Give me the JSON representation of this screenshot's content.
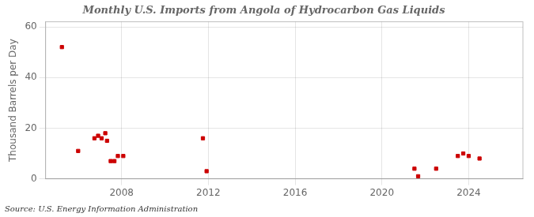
{
  "chart_data": {
    "type": "scatter",
    "title": "Monthly U.S. Imports from Angola of Hydrocarbon Gas Liquids",
    "ylabel": "Thousand Barrels per Day",
    "source": "Source: U.S. Energy Information Administration",
    "x": [
      2005.25,
      2006.0,
      2006.75,
      2006.92,
      2007.08,
      2007.25,
      2007.33,
      2007.5,
      2007.67,
      2007.83,
      2008.08,
      2011.75,
      2011.92,
      2021.5,
      2021.67,
      2022.5,
      2023.5,
      2023.75,
      2024.0,
      2024.5
    ],
    "values": [
      52,
      11,
      16,
      17,
      16,
      18,
      15,
      7,
      7,
      9,
      9,
      16,
      3,
      4,
      1,
      4,
      9,
      10,
      9,
      8
    ],
    "color": "#cc0000",
    "marker": "square",
    "xlim": [
      2004.5,
      2026.5
    ],
    "xticks": [
      2008,
      2012,
      2016,
      2020,
      2024
    ],
    "ylim": [
      0,
      62
    ],
    "yticks": [
      0,
      20,
      40,
      60
    ],
    "grid": true
  }
}
